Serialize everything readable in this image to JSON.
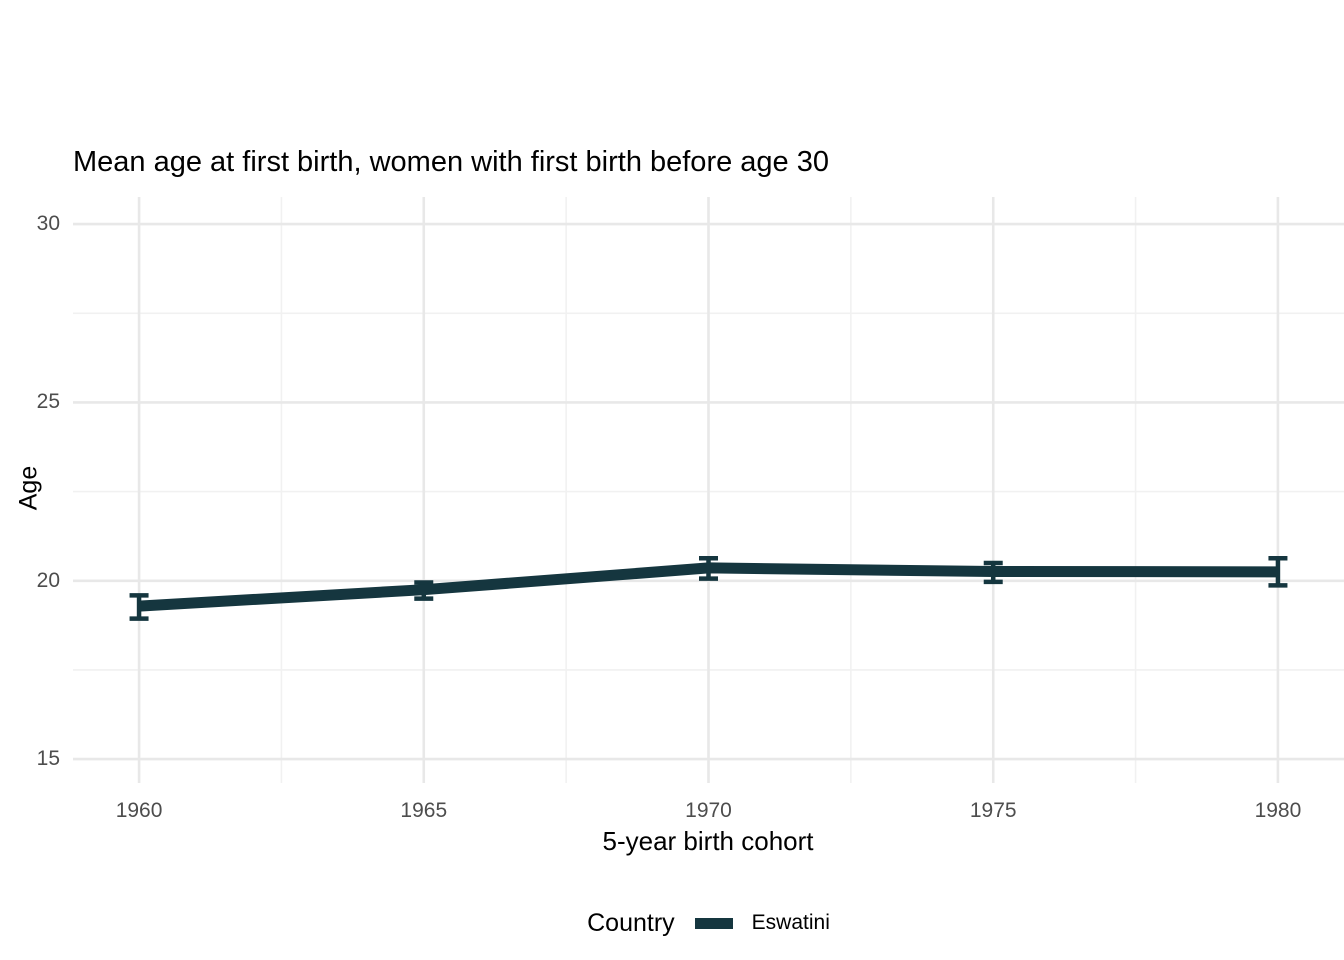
{
  "figure": {
    "background": "#ffffff"
  },
  "chart_data": {
    "type": "line",
    "title": "Mean age at first birth, women with first birth before age 30",
    "xlabel": "5-year birth cohort",
    "ylabel": "Age",
    "x": [
      1960,
      1965,
      1970,
      1975,
      1980
    ],
    "x_tick_labels": [
      "1960",
      "1965",
      "1970",
      "1975",
      "1980"
    ],
    "y_ticks": [
      15,
      20,
      25,
      30
    ],
    "y_tick_labels": [
      "15",
      "20",
      "25",
      "30"
    ],
    "x_minor_ticks": [
      1962.5,
      1967.5,
      1972.5,
      1977.5
    ],
    "y_minor_ticks": [
      17.5,
      22.5,
      27.5
    ],
    "axes": {
      "x_range": [
        1958.84,
        1981.16
      ],
      "y_range": [
        14.33,
        30.76
      ],
      "grid": true,
      "legend_position": "bottom"
    },
    "series": [
      {
        "name": "Eswatini",
        "color": "#15363F",
        "values": [
          19.29,
          19.75,
          20.36,
          20.26,
          20.25
        ],
        "ci_low": [
          18.94,
          19.5,
          20.06,
          19.97,
          19.87
        ],
        "ci_high": [
          19.59,
          19.95,
          20.63,
          20.5,
          20.63
        ]
      }
    ],
    "legend": {
      "title": "Country"
    }
  },
  "colors": {
    "grid_major": "#E8E8E8",
    "grid_minor": "#F1F1F1",
    "tick_text": "#4D4D4D",
    "title_text": "#000000",
    "line": "#15363F"
  }
}
